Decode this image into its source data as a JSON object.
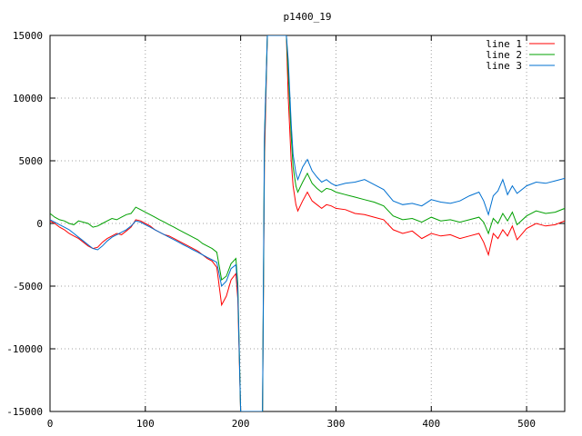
{
  "chart_data": {
    "type": "line",
    "title": "p1400_19",
    "xlabel": "",
    "ylabel": "",
    "xlim": [
      0,
      540
    ],
    "ylim": [
      -15000,
      15000
    ],
    "xticks": [
      0,
      100,
      200,
      300,
      400,
      500
    ],
    "yticks": [
      -15000,
      -10000,
      -5000,
      0,
      5000,
      10000,
      15000
    ],
    "grid": true,
    "legend_position": "top-right",
    "series": [
      {
        "name": "line 1",
        "color": "#ff0000",
        "x": [
          0,
          5,
          10,
          15,
          20,
          25,
          30,
          35,
          40,
          45,
          50,
          55,
          60,
          65,
          70,
          75,
          80,
          85,
          90,
          95,
          100,
          105,
          110,
          115,
          120,
          125,
          130,
          135,
          140,
          145,
          150,
          155,
          160,
          165,
          170,
          175,
          180,
          185,
          190,
          195,
          197,
          200,
          205,
          210,
          215,
          220,
          223,
          225,
          228,
          230,
          233,
          236,
          240,
          243,
          246,
          248,
          250,
          253,
          255,
          258,
          260,
          265,
          270,
          275,
          280,
          285,
          290,
          295,
          300,
          310,
          320,
          330,
          340,
          350,
          360,
          370,
          380,
          390,
          400,
          410,
          420,
          430,
          440,
          450,
          455,
          460,
          465,
          470,
          475,
          480,
          485,
          490,
          500,
          510,
          520,
          530,
          540
        ],
        "y": [
          200,
          0,
          -300,
          -500,
          -800,
          -1000,
          -1200,
          -1500,
          -1800,
          -2000,
          -1900,
          -1500,
          -1200,
          -1000,
          -800,
          -900,
          -600,
          -300,
          300,
          200,
          0,
          -200,
          -500,
          -700,
          -900,
          -1000,
          -1200,
          -1400,
          -1600,
          -1800,
          -2000,
          -2200,
          -2500,
          -2800,
          -3000,
          -3500,
          -6500,
          -5800,
          -4500,
          -4000,
          -6000,
          -15000,
          -15000,
          -15000,
          -15000,
          -15000,
          -15000,
          5000,
          15000,
          15000,
          15000,
          15000,
          15000,
          15000,
          15000,
          15000,
          10000,
          5000,
          3000,
          1500,
          1000,
          1800,
          2500,
          1800,
          1500,
          1200,
          1500,
          1400,
          1200,
          1100,
          800,
          700,
          500,
          300,
          -500,
          -800,
          -600,
          -1200,
          -800,
          -1000,
          -900,
          -1200,
          -1000,
          -800,
          -1500,
          -2500,
          -800,
          -1200,
          -500,
          -1000,
          -200,
          -1300,
          -400,
          0,
          -200,
          -100,
          200
        ]
      },
      {
        "name": "line 2",
        "color": "#00a000",
        "x": [
          0,
          5,
          10,
          15,
          20,
          25,
          30,
          35,
          40,
          45,
          50,
          55,
          60,
          65,
          70,
          75,
          80,
          85,
          90,
          95,
          100,
          105,
          110,
          115,
          120,
          125,
          130,
          135,
          140,
          145,
          150,
          155,
          160,
          165,
          170,
          175,
          180,
          185,
          190,
          195,
          197,
          200,
          205,
          210,
          215,
          220,
          223,
          225,
          228,
          230,
          233,
          236,
          240,
          243,
          246,
          248,
          250,
          253,
          255,
          258,
          260,
          265,
          270,
          275,
          280,
          285,
          290,
          295,
          300,
          310,
          320,
          330,
          340,
          350,
          360,
          370,
          380,
          390,
          400,
          410,
          420,
          430,
          440,
          450,
          455,
          460,
          465,
          470,
          475,
          480,
          485,
          490,
          500,
          510,
          520,
          530,
          540
        ],
        "y": [
          800,
          500,
          300,
          200,
          0,
          -100,
          200,
          100,
          0,
          -300,
          -200,
          0,
          200,
          400,
          300,
          500,
          700,
          800,
          1300,
          1100,
          900,
          700,
          500,
          300,
          100,
          -100,
          -300,
          -500,
          -700,
          -900,
          -1100,
          -1300,
          -1600,
          -1800,
          -2000,
          -2300,
          -4500,
          -4200,
          -3200,
          -2800,
          -4800,
          -15000,
          -15000,
          -15000,
          -15000,
          -15000,
          -15000,
          6500,
          15000,
          15000,
          15000,
          15000,
          15000,
          15000,
          15000,
          15000,
          12000,
          7000,
          4500,
          3000,
          2500,
          3300,
          4000,
          3200,
          2800,
          2500,
          2800,
          2700,
          2500,
          2300,
          2100,
          1900,
          1700,
          1400,
          600,
          300,
          400,
          100,
          500,
          200,
          300,
          100,
          300,
          500,
          100,
          -800,
          400,
          0,
          800,
          200,
          900,
          -100,
          600,
          1000,
          800,
          900,
          1200
        ]
      },
      {
        "name": "line 3",
        "color": "#0070d0",
        "x": [
          0,
          5,
          10,
          15,
          20,
          25,
          30,
          35,
          40,
          45,
          50,
          55,
          60,
          65,
          70,
          75,
          80,
          85,
          90,
          95,
          100,
          105,
          110,
          115,
          120,
          125,
          130,
          135,
          140,
          145,
          150,
          155,
          160,
          165,
          170,
          175,
          180,
          185,
          190,
          195,
          197,
          200,
          205,
          210,
          215,
          220,
          223,
          225,
          228,
          230,
          233,
          236,
          240,
          243,
          246,
          248,
          250,
          253,
          255,
          258,
          260,
          265,
          270,
          275,
          280,
          285,
          290,
          295,
          300,
          310,
          320,
          330,
          340,
          350,
          360,
          370,
          380,
          390,
          400,
          410,
          420,
          430,
          440,
          450,
          455,
          460,
          465,
          470,
          475,
          480,
          485,
          490,
          500,
          510,
          520,
          530,
          540
        ],
        "y": [
          300,
          100,
          -100,
          -300,
          -500,
          -800,
          -1100,
          -1400,
          -1700,
          -2000,
          -2100,
          -1800,
          -1400,
          -1100,
          -900,
          -700,
          -500,
          -200,
          200,
          100,
          -100,
          -300,
          -500,
          -700,
          -900,
          -1100,
          -1300,
          -1500,
          -1700,
          -1900,
          -2100,
          -2300,
          -2500,
          -2700,
          -2900,
          -3100,
          -5000,
          -4600,
          -3600,
          -3300,
          -5200,
          -15000,
          -15000,
          -15000,
          -15000,
          -15000,
          -15000,
          7000,
          15000,
          15000,
          15000,
          15000,
          15000,
          15000,
          15000,
          15000,
          13000,
          8000,
          5500,
          4000,
          3500,
          4500,
          5100,
          4200,
          3700,
          3300,
          3500,
          3200,
          3000,
          3200,
          3300,
          3500,
          3100,
          2700,
          1800,
          1500,
          1600,
          1400,
          1900,
          1700,
          1600,
          1800,
          2200,
          2500,
          1800,
          700,
          2200,
          2600,
          3500,
          2300,
          3000,
          2400,
          3000,
          3300,
          3200,
          3400,
          3600
        ]
      }
    ]
  }
}
